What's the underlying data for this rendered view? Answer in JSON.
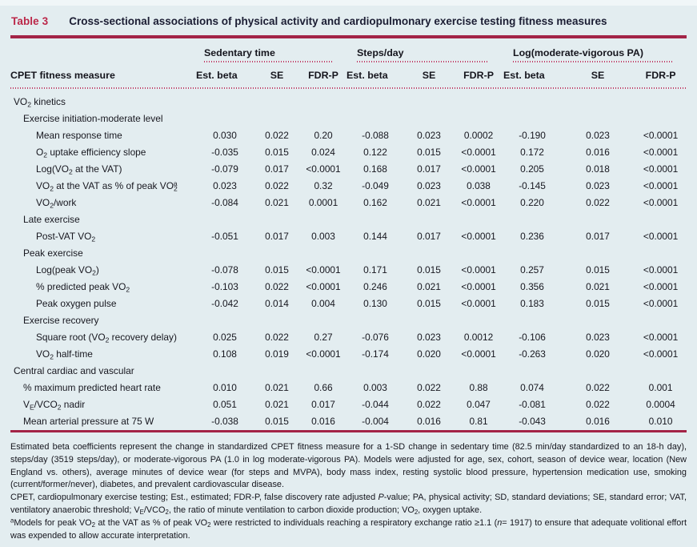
{
  "table": {
    "label": "Table 3",
    "title": "Cross-sectional associations of physical activity and cardiopulmonary exercise testing fitness measures",
    "row_header": "CPET fitness measure",
    "groups": [
      {
        "label": "Sedentary time"
      },
      {
        "label": "Steps/day"
      },
      {
        "label": "Log(moderate-vigorous PA)"
      }
    ],
    "sub_columns": [
      "Est. beta",
      "SE",
      "FDR-P"
    ],
    "rows": [
      {
        "label": "VO_{2} kinetics",
        "indent": 0,
        "values": []
      },
      {
        "label": "Exercise initiation-moderate level",
        "indent": 1,
        "values": []
      },
      {
        "label": "Mean response time",
        "indent": 2,
        "values": [
          "0.030",
          "0.022",
          "0.20",
          "-0.088",
          "0.023",
          "0.0002",
          "-0.190",
          "0.023",
          "<0.0001"
        ]
      },
      {
        "label": "O_{2} uptake efficiency slope",
        "indent": 2,
        "values": [
          "-0.035",
          "0.015",
          "0.024",
          "0.122",
          "0.015",
          "<0.0001",
          "0.172",
          "0.016",
          "<0.0001"
        ]
      },
      {
        "label": "Log(VO_{2} at the VAT)",
        "indent": 2,
        "values": [
          "-0.079",
          "0.017",
          "<0.0001",
          "0.168",
          "0.017",
          "<0.0001",
          "0.205",
          "0.018",
          "<0.0001"
        ]
      },
      {
        "label": "VO_{2} at the VAT as % of peak VO_{2}^{a}",
        "indent": 2,
        "values": [
          "0.023",
          "0.022",
          "0.32",
          "-0.049",
          "0.023",
          "0.038",
          "-0.145",
          "0.023",
          "<0.0001"
        ]
      },
      {
        "label": "VO_{2}/work",
        "indent": 2,
        "values": [
          "-0.084",
          "0.021",
          "0.0001",
          "0.162",
          "0.021",
          "<0.0001",
          "0.220",
          "0.022",
          "<0.0001"
        ]
      },
      {
        "label": "Late exercise",
        "indent": 1,
        "values": []
      },
      {
        "label": "Post-VAT VO_{2}",
        "indent": 2,
        "values": [
          "-0.051",
          "0.017",
          "0.003",
          "0.144",
          "0.017",
          "<0.0001",
          "0.236",
          "0.017",
          "<0.0001"
        ]
      },
      {
        "label": "Peak exercise",
        "indent": 1,
        "values": []
      },
      {
        "label": "Log(peak VO_{2})",
        "indent": 2,
        "values": [
          "-0.078",
          "0.015",
          "<0.0001",
          "0.171",
          "0.015",
          "<0.0001",
          "0.257",
          "0.015",
          "<0.0001"
        ]
      },
      {
        "label": "% predicted peak VO_{2}",
        "indent": 2,
        "values": [
          "-0.103",
          "0.022",
          "<0.0001",
          "0.246",
          "0.021",
          "<0.0001",
          "0.356",
          "0.021",
          "<0.0001"
        ]
      },
      {
        "label": "Peak oxygen pulse",
        "indent": 2,
        "values": [
          "-0.042",
          "0.014",
          "0.004",
          "0.130",
          "0.015",
          "<0.0001",
          "0.183",
          "0.015",
          "<0.0001"
        ]
      },
      {
        "label": "Exercise recovery",
        "indent": 1,
        "values": []
      },
      {
        "label": "Square root (VO_{2} recovery delay)",
        "indent": 2,
        "values": [
          "0.025",
          "0.022",
          "0.27",
          "-0.076",
          "0.023",
          "0.0012",
          "-0.106",
          "0.023",
          "<0.0001"
        ]
      },
      {
        "label": "VO_{2} half-time",
        "indent": 2,
        "values": [
          "0.108",
          "0.019",
          "<0.0001",
          "-0.174",
          "0.020",
          "<0.0001",
          "-0.263",
          "0.020",
          "<0.0001"
        ]
      },
      {
        "label": "Central cardiac and vascular",
        "indent": 0,
        "values": []
      },
      {
        "label": "% maximum predicted heart rate",
        "indent": 1,
        "values": [
          "0.010",
          "0.021",
          "0.66",
          "0.003",
          "0.022",
          "0.88",
          "0.074",
          "0.022",
          "0.001"
        ]
      },
      {
        "label": "V_{E}/VCO_{2} nadir",
        "indent": 1,
        "values": [
          "0.051",
          "0.021",
          "0.017",
          "-0.044",
          "0.022",
          "0.047",
          "-0.081",
          "0.022",
          "0.0004"
        ]
      },
      {
        "label": "Mean arterial pressure at 75 W",
        "indent": 1,
        "values": [
          "-0.038",
          "0.015",
          "0.016",
          "-0.004",
          "0.016",
          "0.81",
          "-0.043",
          "0.016",
          "0.010"
        ]
      }
    ]
  },
  "footnotes": [
    "Estimated beta coefficients represent the change in standardized CPET fitness measure for a 1-SD change in sedentary time (82.5 min/day standardized to an 18-h day), steps/day (3519 steps/day), or moderate-vigorous PA (1.0 in log moderate-vigorous PA). Models were adjusted for age, sex, cohort, season of device wear, location (New England vs. others), average minutes of device wear (for steps and MVPA), body mass index, resting systolic blood pressure, hypertension medication use, smoking (current/former/never), diabetes, and prevalent cardiovascular disease.",
    "CPET, cardiopulmonary exercise testing; Est., estimated; FDR-P, false discovery rate adjusted ~{P}-value; PA, physical activity; SD, standard deviations; SE, standard error; VAT, ventilatory anaerobic threshold; V_{E}/VCO_{2}, the ratio of minute ventilation to carbon dioxide production; VO_{2}, oxygen uptake.",
    "^{a}Models for peak VO_{2} at the VAT as % of peak VO_{2} were restricted to individuals reaching a respiratory exchange ratio ≥1.1 (~{n}= 1917) to ensure that adequate volitional effort was expended to allow accurate interpretation."
  ],
  "colors": {
    "accent_red": "#bb2749",
    "rule_red": "#a32447",
    "dotted_red": "#c13a63",
    "title_navy": "#1b1d33",
    "page_bg": "#e3edf0"
  }
}
